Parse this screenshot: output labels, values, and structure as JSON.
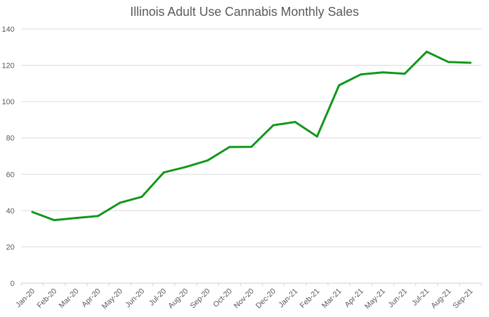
{
  "chart_data": {
    "type": "line",
    "title": "Illinois Adult Use Cannabis Monthly Sales",
    "xlabel": "",
    "ylabel": "",
    "ylim": [
      0,
      140
    ],
    "yticks": [
      "0",
      "20",
      "40",
      "60",
      "80",
      "100",
      "120",
      "140"
    ],
    "grid": true,
    "legend": "none",
    "categories": [
      "Jan-20",
      "Feb-20",
      "Mar-20",
      "Apr-20",
      "May-20",
      "Jun-20",
      "Jul-20",
      "Aug-20",
      "Sep-20",
      "Oct-20",
      "Nov-20",
      "Dec-20",
      "Jan-21",
      "Feb-21",
      "Mar-21",
      "Apr-21",
      "May-21",
      "Jun-21",
      "Jul-21",
      "Aug-21",
      "Sep-21"
    ],
    "series": [
      {
        "name": "Monthly Sales",
        "color": "#109618",
        "values": [
          39.2,
          34.7,
          35.9,
          37.0,
          44.3,
          47.6,
          61.0,
          64.0,
          67.6,
          75.0,
          75.1,
          87.0,
          88.8,
          80.8,
          109.0,
          115.0,
          116.1,
          115.4,
          127.5,
          121.8,
          121.4
        ]
      }
    ]
  }
}
